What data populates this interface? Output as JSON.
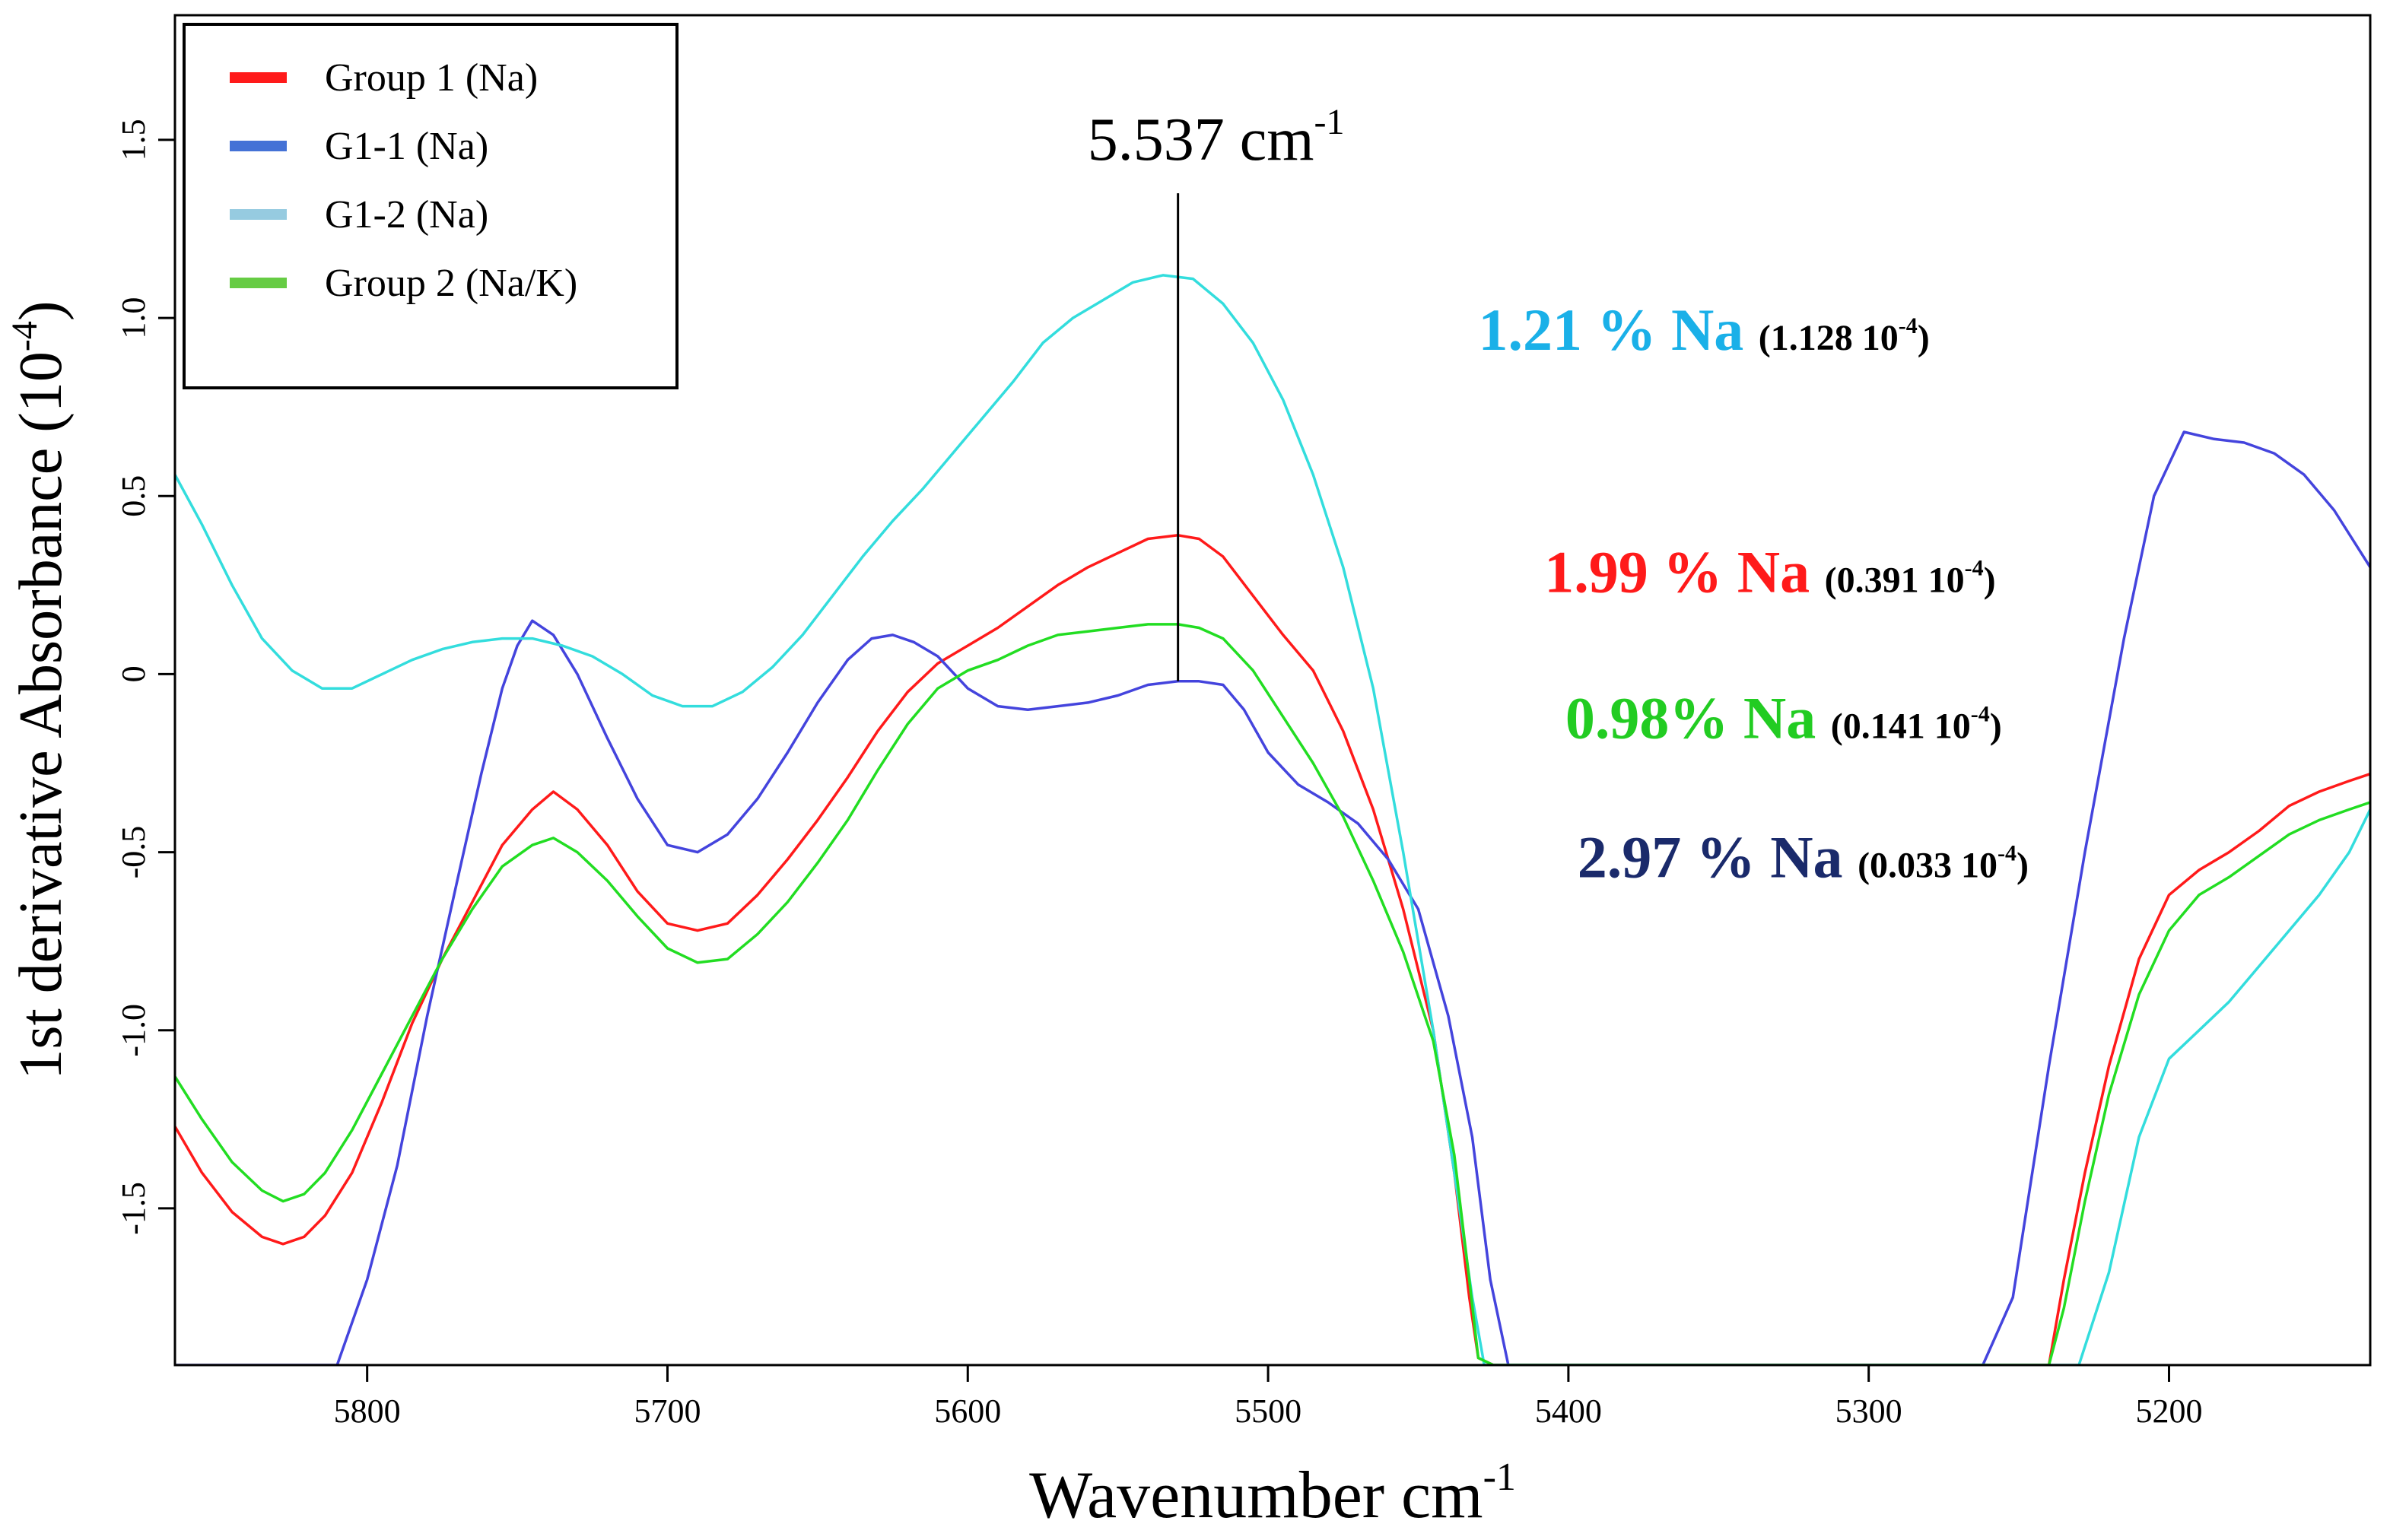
{
  "chart_data": {
    "type": "line",
    "title": "",
    "xlabel": "Wavenumber cm",
    "xlabel_sup": "-1",
    "ylabel": "1st derivative Absorbance (10",
    "ylabel_sup": "-4",
    "ylabel_end": ")",
    "xlim": [
      5864,
      5133
    ],
    "ylim": [
      -1.94,
      1.85
    ],
    "x_ticks": [
      5800,
      5700,
      5600,
      5500,
      5400,
      5300,
      5200
    ],
    "x_tick_labels": [
      "5800",
      "5700",
      "5600",
      "5500",
      "5400",
      "5300",
      "5200"
    ],
    "y_ticks": [
      -1.5,
      -1.0,
      -0.5,
      0,
      0.5,
      1.0,
      1.5
    ],
    "y_tick_labels": [
      "-1.5",
      "-1.0",
      "-0.5",
      "0",
      "0.5",
      "1.0",
      "1.5"
    ],
    "legend": {
      "position": "top-left",
      "entries": [
        {
          "label": "Group 1 (Na)",
          "color": "#ff1a1a"
        },
        {
          "label": "G1-1 (Na)",
          "color": "#4472d6"
        },
        {
          "label": "G1-2 (Na)",
          "color": "#96cbe0"
        },
        {
          "label": "Group 2 (Na/K)",
          "color": "#66cc44"
        }
      ]
    },
    "marker": {
      "x": 5530,
      "y_top": 1.35,
      "y_bottom": -0.02,
      "label": "5.537 cm",
      "label_sup": "-1"
    },
    "annotations": [
      {
        "main": "1.21 % Na",
        "value": "(1.128 10",
        "sup": "-4",
        "close": ")",
        "color": "#1ab0e8",
        "x": 5430,
        "y": 0.91
      },
      {
        "main": "1.99 % Na",
        "value": "(0.391 10",
        "sup": "-4",
        "close": ")",
        "color": "#ff1a1a",
        "x": 5408,
        "y": 0.23
      },
      {
        "main": "0.98% Na",
        "value": "(0.141 10",
        "sup": "-4",
        "close": ")",
        "color": "#22cc22",
        "x": 5401,
        "y": -0.18
      },
      {
        "main": "2.97 % Na",
        "value": "(0.033 10",
        "sup": "-4",
        "close": ")",
        "color": "#1a2a6b",
        "x": 5397,
        "y": -0.57
      }
    ],
    "series": [
      {
        "name": "Group 1 (Na)",
        "color": "#ff1a1a",
        "x": [
          5864,
          5855,
          5845,
          5835,
          5828,
          5821,
          5814,
          5805,
          5795,
          5785,
          5775,
          5765,
          5755,
          5745,
          5738,
          5730,
          5720,
          5710,
          5700,
          5690,
          5680,
          5670,
          5660,
          5650,
          5640,
          5630,
          5620,
          5610,
          5600,
          5590,
          5580,
          5570,
          5560,
          5550,
          5540,
          5530,
          5523,
          5515,
          5505,
          5495,
          5485,
          5475,
          5465,
          5455,
          5445,
          5438,
          5433,
          5430,
          5425,
          5420,
          5240,
          5235,
          5228,
          5220,
          5210,
          5200,
          5190,
          5180,
          5170,
          5160,
          5150,
          5140,
          5133
        ],
        "y": [
          -1.27,
          -1.4,
          -1.51,
          -1.58,
          -1.6,
          -1.58,
          -1.52,
          -1.4,
          -1.2,
          -0.98,
          -0.8,
          -0.64,
          -0.48,
          -0.38,
          -0.33,
          -0.38,
          -0.48,
          -0.61,
          -0.7,
          -0.72,
          -0.7,
          -0.62,
          -0.52,
          -0.41,
          -0.29,
          -0.16,
          -0.05,
          0.03,
          0.08,
          0.13,
          0.19,
          0.25,
          0.3,
          0.34,
          0.38,
          0.39,
          0.38,
          0.33,
          0.22,
          0.11,
          0.01,
          -0.16,
          -0.38,
          -0.66,
          -1.0,
          -1.4,
          -1.75,
          -1.92,
          -1.94,
          -1.94,
          -1.94,
          -1.7,
          -1.4,
          -1.1,
          -0.8,
          -0.62,
          -0.55,
          -0.5,
          -0.44,
          -0.37,
          -0.33,
          -0.3,
          -0.28
        ]
      },
      {
        "name": "G1-1 (Na)",
        "color": "#4444dd",
        "x": [
          5864,
          5810,
          5800,
          5790,
          5780,
          5770,
          5762,
          5755,
          5750,
          5745,
          5738,
          5730,
          5720,
          5710,
          5700,
          5690,
          5680,
          5670,
          5660,
          5650,
          5640,
          5632,
          5625,
          5618,
          5610,
          5600,
          5590,
          5580,
          5570,
          5560,
          5550,
          5540,
          5530,
          5523,
          5515,
          5508,
          5500,
          5490,
          5480,
          5470,
          5460,
          5450,
          5440,
          5432,
          5426,
          5420,
          5262,
          5252,
          5240,
          5228,
          5215,
          5205,
          5195,
          5185,
          5175,
          5165,
          5155,
          5145,
          5133
        ],
        "y": [
          -1.94,
          -1.94,
          -1.7,
          -1.38,
          -0.96,
          -0.58,
          -0.28,
          -0.04,
          0.08,
          0.15,
          0.11,
          0.0,
          -0.18,
          -0.35,
          -0.48,
          -0.5,
          -0.45,
          -0.35,
          -0.22,
          -0.08,
          0.04,
          0.1,
          0.11,
          0.09,
          0.05,
          -0.04,
          -0.09,
          -0.1,
          -0.09,
          -0.08,
          -0.06,
          -0.03,
          -0.02,
          -0.02,
          -0.03,
          -0.1,
          -0.22,
          -0.31,
          -0.36,
          -0.42,
          -0.52,
          -0.66,
          -0.96,
          -1.3,
          -1.7,
          -1.94,
          -1.94,
          -1.75,
          -1.1,
          -0.5,
          0.1,
          0.5,
          0.68,
          0.66,
          0.65,
          0.62,
          0.56,
          0.46,
          0.3
        ]
      },
      {
        "name": "G1-2 (Na)",
        "color": "#33dddd",
        "x": [
          5864,
          5855,
          5845,
          5835,
          5825,
          5815,
          5805,
          5795,
          5785,
          5775,
          5765,
          5755,
          5745,
          5735,
          5725,
          5715,
          5705,
          5695,
          5685,
          5675,
          5665,
          5655,
          5645,
          5635,
          5625,
          5615,
          5605,
          5595,
          5585,
          5575,
          5565,
          5555,
          5545,
          5535,
          5525,
          5515,
          5505,
          5495,
          5485,
          5475,
          5465,
          5455,
          5445,
          5438,
          5432,
          5428,
          5230,
          5220,
          5210,
          5200,
          5190,
          5180,
          5170,
          5160,
          5150,
          5140,
          5133
        ],
        "y": [
          0.56,
          0.42,
          0.25,
          0.1,
          0.01,
          -0.04,
          -0.04,
          0.0,
          0.04,
          0.07,
          0.09,
          0.1,
          0.1,
          0.08,
          0.05,
          0.0,
          -0.06,
          -0.09,
          -0.09,
          -0.05,
          0.02,
          0.11,
          0.22,
          0.33,
          0.43,
          0.52,
          0.62,
          0.72,
          0.82,
          0.93,
          1.0,
          1.05,
          1.1,
          1.12,
          1.11,
          1.04,
          0.93,
          0.77,
          0.56,
          0.3,
          -0.04,
          -0.5,
          -1.0,
          -1.4,
          -1.75,
          -1.94,
          -1.94,
          -1.68,
          -1.3,
          -1.08,
          -1.0,
          -0.92,
          -0.82,
          -0.72,
          -0.62,
          -0.5,
          -0.38
        ]
      },
      {
        "name": "Group 2 (Na/K)",
        "color": "#22dd22",
        "x": [
          5864,
          5855,
          5845,
          5835,
          5828,
          5821,
          5814,
          5805,
          5795,
          5785,
          5775,
          5765,
          5755,
          5745,
          5738,
          5730,
          5720,
          5710,
          5700,
          5690,
          5680,
          5670,
          5660,
          5650,
          5640,
          5630,
          5620,
          5610,
          5600,
          5590,
          5580,
          5570,
          5560,
          5550,
          5540,
          5530,
          5523,
          5515,
          5505,
          5495,
          5485,
          5475,
          5465,
          5455,
          5445,
          5438,
          5433,
          5430,
          5425,
          5420,
          5240,
          5235,
          5228,
          5220,
          5210,
          5200,
          5190,
          5180,
          5170,
          5160,
          5150,
          5140,
          5133
        ],
        "y": [
          -1.13,
          -1.25,
          -1.37,
          -1.45,
          -1.48,
          -1.46,
          -1.4,
          -1.28,
          -1.12,
          -0.96,
          -0.8,
          -0.66,
          -0.54,
          -0.48,
          -0.46,
          -0.5,
          -0.58,
          -0.68,
          -0.77,
          -0.81,
          -0.8,
          -0.73,
          -0.64,
          -0.53,
          -0.41,
          -0.27,
          -0.14,
          -0.04,
          0.01,
          0.04,
          0.08,
          0.11,
          0.12,
          0.13,
          0.14,
          0.14,
          0.13,
          0.1,
          0.01,
          -0.12,
          -0.25,
          -0.4,
          -0.58,
          -0.78,
          -1.03,
          -1.35,
          -1.7,
          -1.92,
          -1.94,
          -1.94,
          -1.94,
          -1.78,
          -1.48,
          -1.18,
          -0.9,
          -0.72,
          -0.62,
          -0.57,
          -0.51,
          -0.45,
          -0.41,
          -0.38,
          -0.36
        ]
      }
    ]
  }
}
